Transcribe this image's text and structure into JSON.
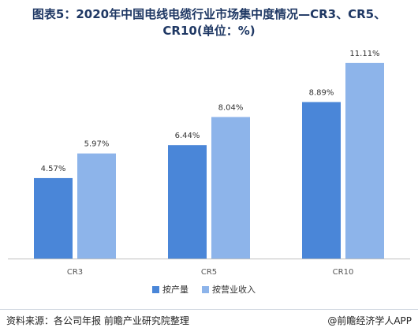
{
  "header": {
    "title_line1": "图表5：2020年中国电线电缆行业市场集中度情况—CR3、CR5、",
    "title_line2": "CR10(单位：%)"
  },
  "footer": {
    "source": "资料来源：各公司年报 前瞻产业研究院整理",
    "credit": "@前瞻经济学人APP"
  },
  "colors": {
    "series1": "#4a86d8",
    "series2": "#8db4ea",
    "axis": "#bfbfbf",
    "label": "#333333"
  },
  "chart_data": {
    "type": "bar",
    "categories": [
      "CR3",
      "CR5",
      "CR10"
    ],
    "series": [
      {
        "name": "按产量",
        "values": [
          4.57,
          6.44,
          8.89
        ],
        "labels": [
          "4.57%",
          "6.44%",
          "8.89%"
        ]
      },
      {
        "name": "按营业收入",
        "values": [
          5.97,
          8.04,
          11.11
        ],
        "labels": [
          "5.97%",
          "8.04%",
          "11.11%"
        ]
      }
    ],
    "ylim": [
      0,
      12
    ],
    "grid": false,
    "legend": "bottom-center"
  }
}
